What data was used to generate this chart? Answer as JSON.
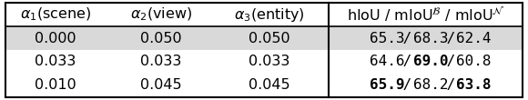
{
  "rows": [
    {
      "alpha1": "0.000",
      "alpha2": "0.050",
      "alpha3": "0.050",
      "parts": [
        "65.3",
        "68.3",
        "62.4"
      ],
      "bold_parts": [],
      "highlight": true
    },
    {
      "alpha1": "0.033",
      "alpha2": "0.033",
      "alpha3": "0.033",
      "parts": [
        "64.6",
        "69.0",
        "60.8"
      ],
      "bold_parts": [
        "69.0"
      ],
      "highlight": false
    },
    {
      "alpha1": "0.010",
      "alpha2": "0.045",
      "alpha3": "0.045",
      "parts": [
        "65.9",
        "68.2",
        "63.8"
      ],
      "bold_parts": [
        "65.9",
        "63.8"
      ],
      "highlight": false
    }
  ],
  "highlight_color": "#d9d9d9",
  "border_color": "#000000",
  "text_color": "#000000",
  "figsize": [
    5.8,
    1.1
  ],
  "dpi": 100,
  "fontsize": 11.5
}
